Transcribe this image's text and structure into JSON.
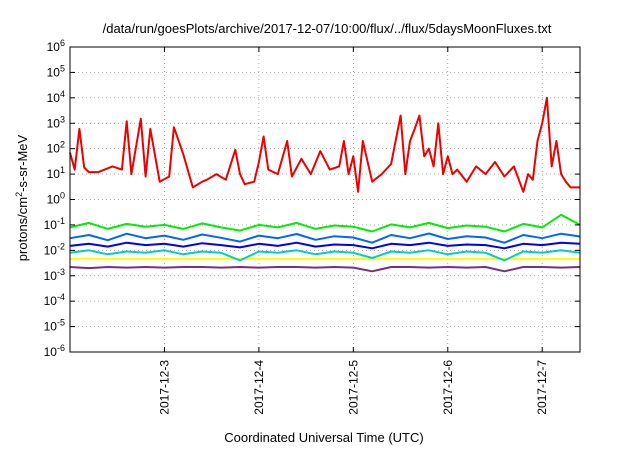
{
  "chart_data": {
    "type": "line",
    "title": "/data/run/goesPlots/archive/2017-12-07/10:00/flux/../flux/5daysMoonFluxes.txt",
    "xlabel": "Coordinated Universal Time (UTC)",
    "ylabel": {
      "prefix": "protons/cm",
      "sup": "2",
      "suffix": "-s-sr-MeV"
    },
    "log_y": true,
    "ylim_exp": [
      -6,
      6
    ],
    "y_ticks": [
      {
        "base": "10",
        "exp": "-6"
      },
      {
        "base": "10",
        "exp": "-5"
      },
      {
        "base": "10",
        "exp": "-4"
      },
      {
        "base": "10",
        "exp": "-3"
      },
      {
        "base": "10",
        "exp": "-2"
      },
      {
        "base": "10",
        "exp": "-1"
      },
      {
        "base": "10",
        "exp": "0"
      },
      {
        "base": "10",
        "exp": "1"
      },
      {
        "base": "10",
        "exp": "2"
      },
      {
        "base": "10",
        "exp": "3"
      },
      {
        "base": "10",
        "exp": "4"
      },
      {
        "base": "10",
        "exp": "5"
      },
      {
        "base": "10",
        "exp": "6"
      }
    ],
    "xlim_days": [
      0,
      5.4
    ],
    "x_ticks": [
      {
        "label": "2017-12-3",
        "day": 1.0
      },
      {
        "label": "2017-12-4",
        "day": 2.0
      },
      {
        "label": "2017-12-5",
        "day": 3.0
      },
      {
        "label": "2017-12-6",
        "day": 4.0
      },
      {
        "label": "2017-12-7",
        "day": 5.0
      }
    ],
    "grid": true,
    "series": [
      {
        "color": "#7b2d7f",
        "x": [
          0,
          0.2,
          0.4,
          0.6,
          0.8,
          1.0,
          1.2,
          1.4,
          1.6,
          1.8,
          2.0,
          2.2,
          2.4,
          2.6,
          2.8,
          3.0,
          3.2,
          3.4,
          3.6,
          3.8,
          4.0,
          4.2,
          4.4,
          4.6,
          4.8,
          5.0,
          5.2,
          5.4
        ],
        "y": [
          0.0022,
          0.002,
          0.0022,
          0.0021,
          0.0022,
          0.0021,
          0.0022,
          0.0022,
          0.0021,
          0.0022,
          0.0021,
          0.0022,
          0.0022,
          0.0021,
          0.0022,
          0.0021,
          0.0015,
          0.0022,
          0.0022,
          0.0021,
          0.0022,
          0.0021,
          0.0022,
          0.0015,
          0.0022,
          0.0022,
          0.0021,
          0.0022
        ]
      },
      {
        "color": "#ffff00",
        "x": [
          0,
          0.2,
          0.4,
          0.6,
          0.8,
          1.0,
          1.2,
          1.4,
          1.6,
          1.8,
          2.0,
          2.2,
          2.4,
          2.6,
          2.8,
          3.0,
          3.2,
          3.4,
          3.6,
          3.8,
          4.0,
          4.2,
          4.4,
          4.6,
          4.8,
          5.0,
          5.2,
          5.4
        ],
        "y": [
          0.0045,
          0.0048,
          0.0045,
          0.0046,
          0.0045,
          0.0047,
          0.0045,
          0.0046,
          0.0045,
          0.0046,
          0.0045,
          0.0047,
          0.0045,
          0.0046,
          0.0045,
          0.0046,
          0.0045,
          0.0047,
          0.0045,
          0.0046,
          0.0045,
          0.0046,
          0.0045,
          0.0047,
          0.0045,
          0.0046,
          0.0045,
          0.0046
        ]
      },
      {
        "color": "#00cccc",
        "x": [
          0,
          0.2,
          0.4,
          0.6,
          0.8,
          1.0,
          1.2,
          1.4,
          1.6,
          1.8,
          2.0,
          2.2,
          2.4,
          2.6,
          2.8,
          3.0,
          3.2,
          3.4,
          3.6,
          3.8,
          4.0,
          4.2,
          4.4,
          4.6,
          4.8,
          5.0,
          5.2,
          5.4
        ],
        "y": [
          0.008,
          0.01,
          0.007,
          0.009,
          0.008,
          0.01,
          0.007,
          0.009,
          0.008,
          0.004,
          0.009,
          0.008,
          0.01,
          0.007,
          0.009,
          0.008,
          0.005,
          0.009,
          0.008,
          0.01,
          0.007,
          0.009,
          0.008,
          0.004,
          0.009,
          0.008,
          0.01,
          0.008
        ]
      },
      {
        "color": "#0000ee",
        "x": [
          0,
          0.2,
          0.4,
          0.6,
          0.8,
          1.0,
          1.2,
          1.4,
          1.6,
          1.8,
          2.0,
          2.2,
          2.4,
          2.6,
          2.8,
          3.0,
          3.2,
          3.4,
          3.6,
          3.8,
          4.0,
          4.2,
          4.4,
          4.6,
          4.8,
          5.0,
          5.2,
          5.4
        ],
        "y": [
          0.015,
          0.018,
          0.014,
          0.02,
          0.016,
          0.018,
          0.014,
          0.019,
          0.016,
          0.013,
          0.018,
          0.015,
          0.02,
          0.014,
          0.017,
          0.016,
          0.012,
          0.018,
          0.016,
          0.02,
          0.015,
          0.017,
          0.016,
          0.012,
          0.018,
          0.016,
          0.02,
          0.018
        ]
      },
      {
        "color": "#0066ff",
        "x": [
          0,
          0.2,
          0.4,
          0.6,
          0.8,
          1.0,
          1.2,
          1.4,
          1.6,
          1.8,
          2.0,
          2.2,
          2.4,
          2.6,
          2.8,
          3.0,
          3.2,
          3.4,
          3.6,
          3.8,
          4.0,
          4.2,
          4.4,
          4.6,
          4.8,
          5.0,
          5.2,
          5.4
        ],
        "y": [
          0.03,
          0.04,
          0.025,
          0.045,
          0.03,
          0.038,
          0.026,
          0.042,
          0.031,
          0.022,
          0.038,
          0.03,
          0.044,
          0.026,
          0.036,
          0.032,
          0.02,
          0.04,
          0.03,
          0.046,
          0.028,
          0.036,
          0.032,
          0.02,
          0.04,
          0.03,
          0.045,
          0.035
        ]
      },
      {
        "color": "#00ee00",
        "x": [
          0,
          0.2,
          0.4,
          0.6,
          0.8,
          1.0,
          1.2,
          1.4,
          1.6,
          1.8,
          2.0,
          2.2,
          2.4,
          2.6,
          2.8,
          3.0,
          3.2,
          3.4,
          3.6,
          3.8,
          4.0,
          4.2,
          4.4,
          4.6,
          4.8,
          5.0,
          5.2,
          5.4
        ],
        "y": [
          0.08,
          0.12,
          0.07,
          0.11,
          0.085,
          0.1,
          0.07,
          0.115,
          0.08,
          0.06,
          0.1,
          0.08,
          0.12,
          0.07,
          0.095,
          0.085,
          0.055,
          0.105,
          0.08,
          0.12,
          0.075,
          0.095,
          0.085,
          0.055,
          0.11,
          0.08,
          0.25,
          0.1
        ]
      },
      {
        "color": "#ee0000",
        "x": [
          0,
          0.05,
          0.1,
          0.15,
          0.2,
          0.3,
          0.45,
          0.55,
          0.6,
          0.65,
          0.75,
          0.8,
          0.85,
          0.95,
          1.05,
          1.1,
          1.2,
          1.3,
          1.4,
          1.45,
          1.55,
          1.65,
          1.75,
          1.8,
          1.85,
          1.95,
          2.0,
          2.05,
          2.1,
          2.2,
          2.3,
          2.35,
          2.45,
          2.55,
          2.65,
          2.75,
          2.85,
          2.9,
          2.95,
          3.0,
          3.05,
          3.1,
          3.2,
          3.3,
          3.4,
          3.5,
          3.55,
          3.6,
          3.65,
          3.7,
          3.75,
          3.8,
          3.85,
          3.9,
          3.95,
          4.0,
          4.05,
          4.1,
          4.2,
          4.3,
          4.4,
          4.5,
          4.6,
          4.7,
          4.8,
          4.85,
          4.9,
          4.95,
          5.0,
          5.05,
          5.1,
          5.15,
          5.2,
          5.25,
          5.3,
          5.35,
          5.4
        ],
        "y": [
          70,
          15,
          600,
          18,
          12,
          12,
          20,
          15,
          1200,
          10,
          1500,
          8,
          600,
          5,
          8,
          700,
          60,
          3,
          5,
          6,
          10,
          6,
          90,
          10,
          4,
          5,
          30,
          300,
          15,
          10,
          200,
          8,
          40,
          10,
          80,
          15,
          20,
          200,
          10,
          50,
          2,
          200,
          5,
          10,
          25,
          2000,
          10,
          200,
          600,
          2000,
          50,
          100,
          20,
          1000,
          10,
          50,
          10,
          15,
          5,
          20,
          10,
          30,
          8,
          20,
          2,
          10,
          6,
          200,
          1000,
          10000,
          20,
          200,
          10,
          5,
          3,
          3,
          3
        ]
      }
    ]
  }
}
